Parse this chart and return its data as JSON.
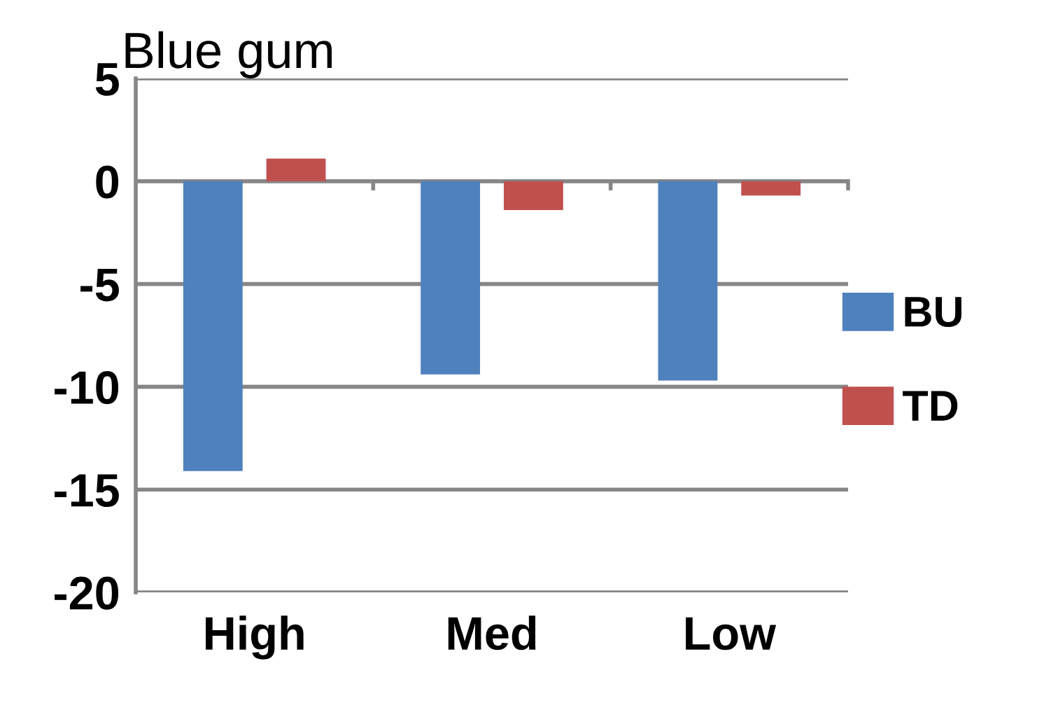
{
  "chart_data": {
    "type": "bar",
    "title": "Blue gum",
    "categories": [
      "High",
      "Med",
      "Low"
    ],
    "series": [
      {
        "name": "BU",
        "color": "#4f81bd",
        "values": [
          -14.1,
          -9.4,
          -9.7
        ]
      },
      {
        "name": "TD",
        "color": "#c0504d",
        "values": [
          1.1,
          -1.4,
          -0.7
        ]
      }
    ],
    "ylim": [
      -20,
      5
    ],
    "yticks": [
      -20,
      -15,
      -10,
      -5,
      0,
      5
    ],
    "grid": "y",
    "legend": "right"
  }
}
